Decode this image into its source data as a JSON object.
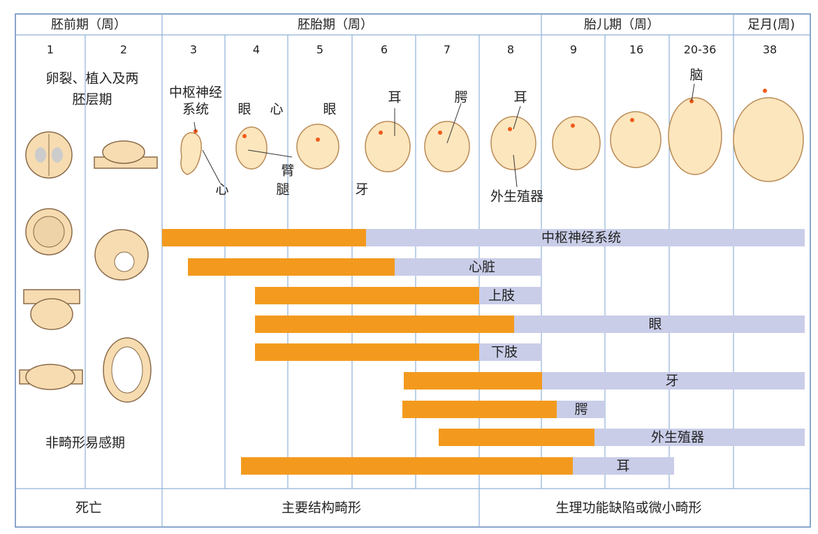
{
  "header": {
    "periods": [
      "胚前期（周）",
      "胚胎期（周）",
      "胎儿期（周）",
      "足月(周)"
    ]
  },
  "weeks": [
    "1",
    "2",
    "3",
    "4",
    "5",
    "6",
    "7",
    "8",
    "9",
    "16",
    "20-36",
    "38"
  ],
  "stage_notes": [
    "卵裂、植入及两",
    "胚层期",
    "非畸形易感期"
  ],
  "embryo_labels": [
    "中枢神经",
    "系统",
    "心",
    "眼",
    "心",
    "眼",
    "臂",
    "腿",
    "耳",
    "牙",
    "腭",
    "耳",
    "外生殖器",
    "脑"
  ],
  "systems": [
    "中枢神经系统",
    "心脏",
    "上肢",
    "眼",
    "下肢",
    "牙",
    "腭",
    "外生殖器",
    "耳"
  ],
  "outcomes": [
    "死亡",
    "主要结构畸形",
    "生理功能缺陷或微小畸形"
  ]
}
